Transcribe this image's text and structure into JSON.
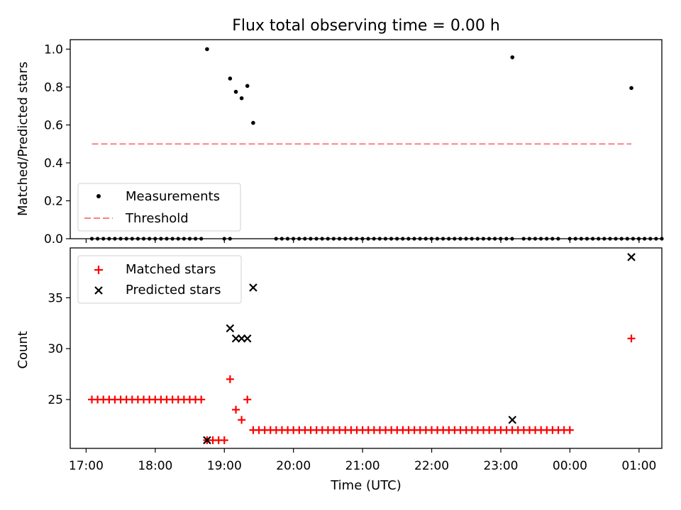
{
  "chart_data": [
    {
      "type": "scatter",
      "title": "Flux total observing time = 0.00 h",
      "xlabel": "",
      "ylabel": "Matched/Predicted stars",
      "ylim": [
        0.0,
        1.05
      ],
      "yticks": [
        0.0,
        0.2,
        0.4,
        0.6,
        0.8,
        1.0
      ],
      "ytick_labels": [
        "0.0",
        "0.2",
        "0.4",
        "0.6",
        "0.8",
        "1.0"
      ],
      "xlim_hours": [
        16.77,
        25.33
      ],
      "legend_location": "lower-left",
      "legend": {
        "measurements": "Measurements",
        "threshold": "Threshold"
      },
      "threshold": {
        "value": 0.5,
        "x_start": 17.083,
        "x_end": 24.889
      },
      "measurements": {
        "zero_times": {
          "start": 17.083,
          "step": 0.0833,
          "count": 100,
          "skip_indices": [
            20,
            21,
            22,
            25,
            26,
            27,
            28,
            29,
            30,
            31,
            74,
            82
          ]
        },
        "points": [
          [
            18.75,
            1.0
          ],
          [
            19.083,
            0.845
          ],
          [
            19.167,
            0.775
          ],
          [
            19.25,
            0.741
          ],
          [
            19.333,
            0.806
          ],
          [
            19.417,
            0.611
          ],
          [
            23.167,
            0.957
          ],
          [
            24.889,
            0.795
          ]
        ]
      }
    },
    {
      "type": "scatter",
      "title": "",
      "xlabel": "Time (UTC)",
      "ylabel": "Count",
      "ylim": [
        20.2,
        39.9
      ],
      "yticks": [
        25,
        30,
        35
      ],
      "ytick_labels": [
        "25",
        "30",
        "35"
      ],
      "xlim_hours": [
        16.77,
        25.33
      ],
      "xticks": [
        17,
        18,
        19,
        20,
        21,
        22,
        23,
        24,
        25
      ],
      "xtick_labels": [
        "17:00",
        "18:00",
        "19:00",
        "20:00",
        "21:00",
        "22:00",
        "23:00",
        "00:00",
        "01:00"
      ],
      "legend_location": "top-left",
      "legend": {
        "matched": "Matched stars",
        "predicted": "Predicted stars"
      },
      "matched_groups": [
        {
          "x_start": 17.083,
          "step": 0.0833,
          "count": 20,
          "value": 25
        },
        {
          "x_start": 18.75,
          "step": 0.0833,
          "count": 4,
          "value": 21
        },
        {
          "x_start": 19.417,
          "step": 0.0833,
          "count": 56,
          "value": 22
        }
      ],
      "matched_points": [
        [
          19.083,
          27
        ],
        [
          19.167,
          24
        ],
        [
          19.25,
          23
        ],
        [
          19.333,
          25
        ],
        [
          24.889,
          31
        ]
      ],
      "predicted_points": [
        [
          18.75,
          21
        ],
        [
          19.083,
          32
        ],
        [
          19.167,
          31
        ],
        [
          19.25,
          31
        ],
        [
          19.333,
          31
        ],
        [
          19.417,
          36
        ],
        [
          23.167,
          23
        ],
        [
          24.889,
          39
        ]
      ]
    }
  ],
  "colors": {
    "measurement": "#000000",
    "threshold": "#ff8080",
    "matched": "#ff0000",
    "predicted": "#000000"
  }
}
